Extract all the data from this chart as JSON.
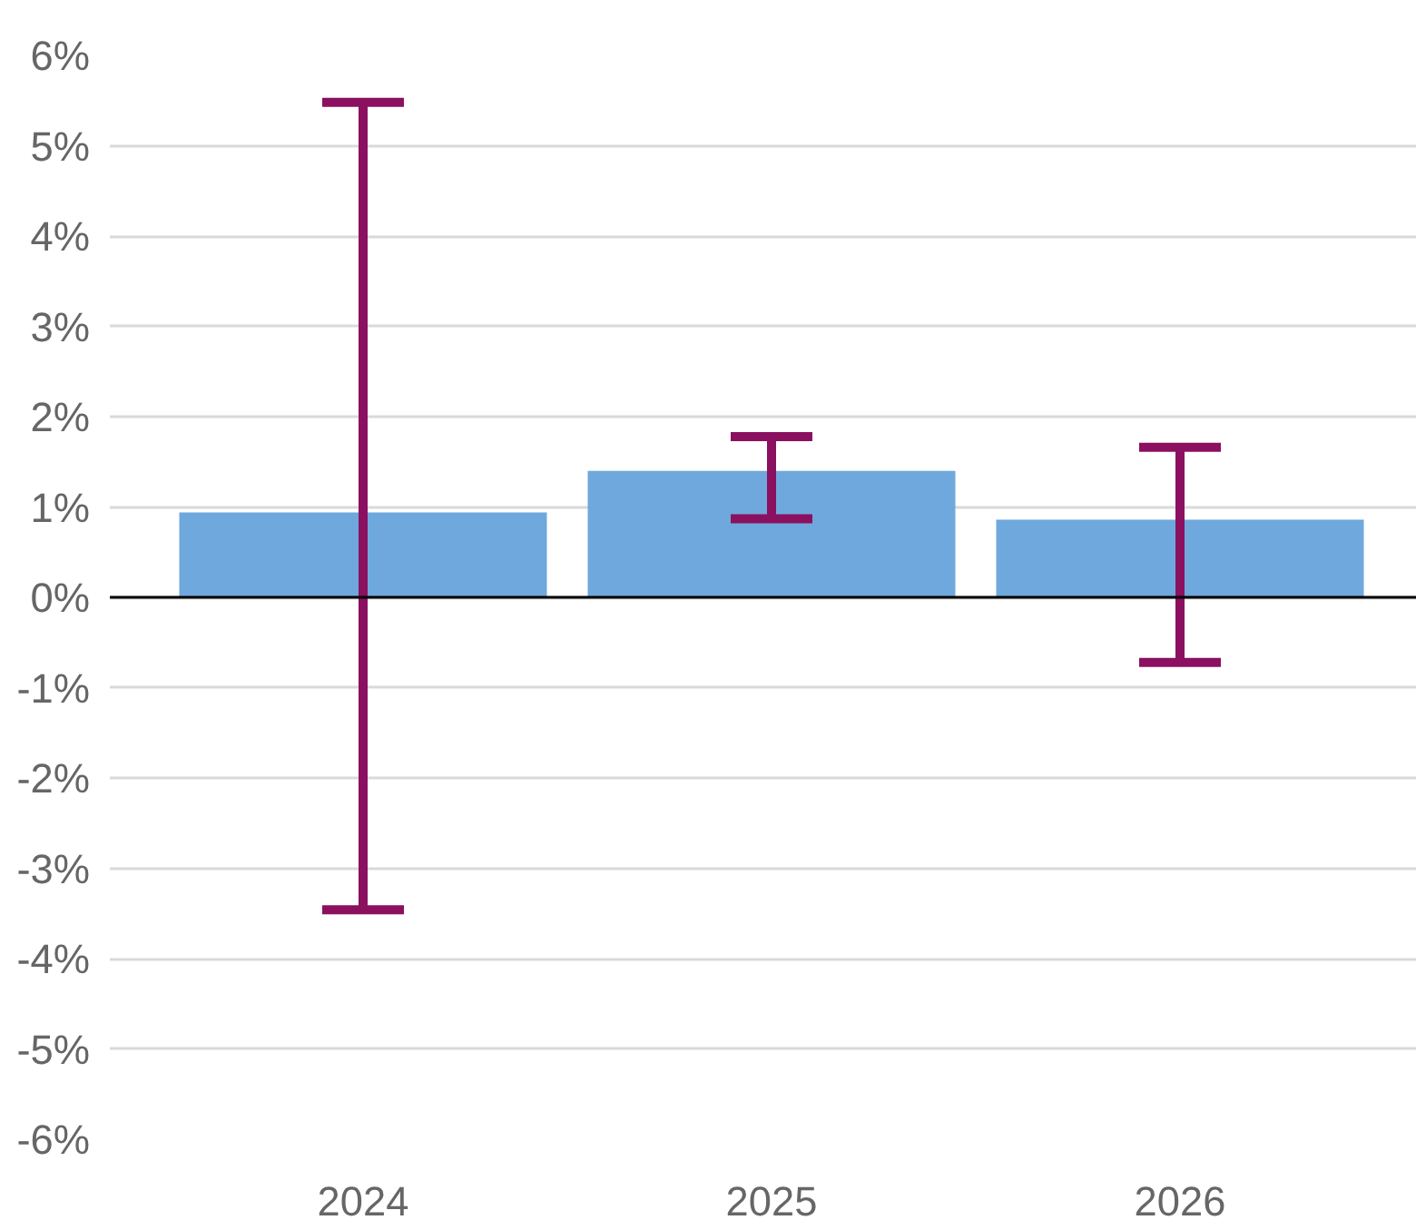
{
  "chart_data": {
    "type": "bar",
    "categories": [
      "2024",
      "2025",
      "2026"
    ],
    "values": [
      0.94,
      1.4,
      0.86
    ],
    "color": "#6fa8dc",
    "errors": [
      [
        -3.46,
        5.48
      ],
      [
        0.87,
        1.78
      ],
      [
        -0.72,
        1.66
      ]
    ],
    "ylim": [
      -6,
      6
    ],
    "yticks": [
      {
        "value": -6,
        "label": "-6%"
      },
      {
        "value": -5,
        "label": "-5%"
      },
      {
        "value": -4,
        "label": "-4%"
      },
      {
        "value": -3,
        "label": "-3%"
      },
      {
        "value": -2,
        "label": "-2%"
      },
      {
        "value": -1,
        "label": "-1%"
      },
      {
        "value": 0,
        "label": "0%"
      },
      {
        "value": 1,
        "label": "1%"
      },
      {
        "value": 2,
        "label": "2%"
      },
      {
        "value": 3,
        "label": "3%"
      },
      {
        "value": 4,
        "label": "4%"
      },
      {
        "value": 5,
        "label": "5%"
      },
      {
        "value": 6,
        "label": "6%"
      }
    ],
    "grid": "y",
    "ref_lines": [
      {
        "axis": "y",
        "value": 0,
        "color": "#000000"
      }
    ]
  }
}
